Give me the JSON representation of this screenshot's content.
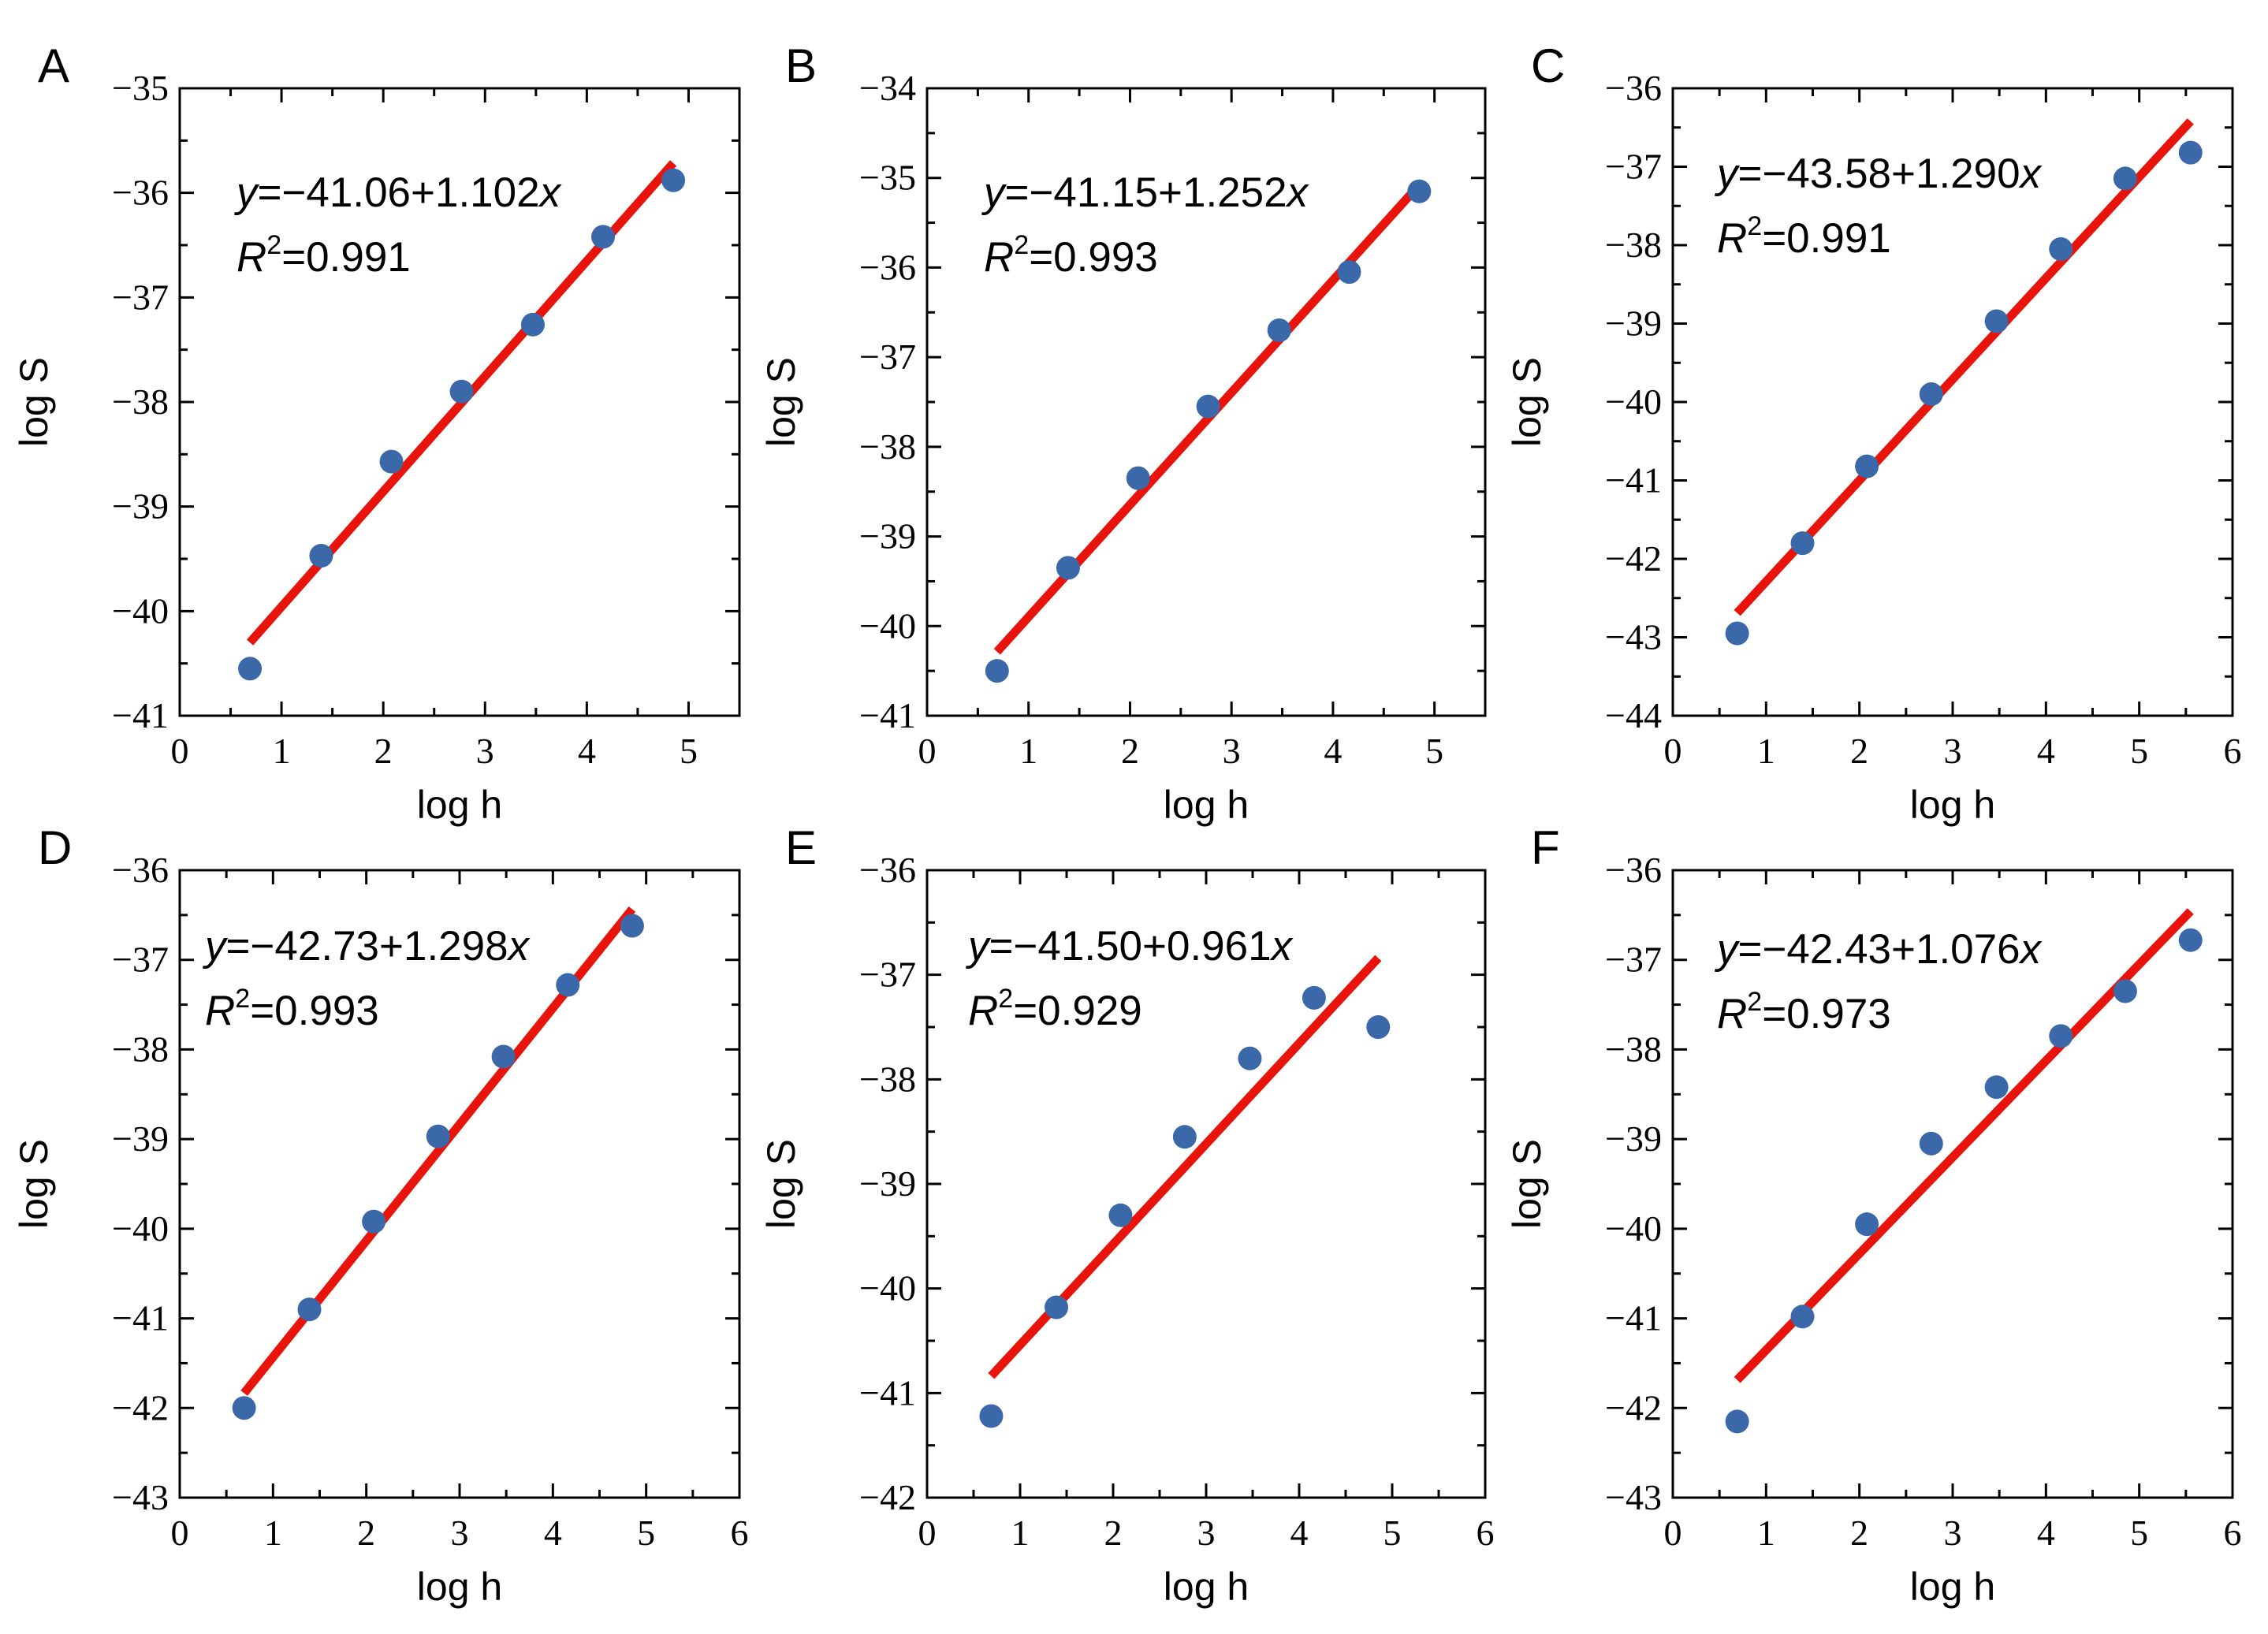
{
  "colors": {
    "fit_line": "#e8140c",
    "points": "#3b68a8",
    "axes": "#000000"
  },
  "chart_data": [
    {
      "type": "scatter",
      "panel": "A",
      "xlabel": "log h",
      "ylabel": "log S",
      "xlim": [
        0,
        5.5
      ],
      "ylim": [
        -41,
        -35
      ],
      "xticks": [
        0,
        1,
        2,
        3,
        4,
        5
      ],
      "xtick_labels": [
        "0",
        "1",
        "2",
        "3",
        "4",
        "5"
      ],
      "yticks": [
        -41,
        -40,
        -39,
        -38,
        -37,
        -36,
        -35
      ],
      "ytick_labels": [
        "−41",
        "−40",
        "−39",
        "−38",
        "−37",
        "−36",
        "−35"
      ],
      "x": [
        0.69,
        1.39,
        2.08,
        2.77,
        3.47,
        4.16,
        4.85
      ],
      "y": [
        -40.55,
        -39.47,
        -38.57,
        -37.9,
        -37.26,
        -36.42,
        -35.88
      ],
      "fit": {
        "intercept": -41.06,
        "slope": 1.102,
        "x_range": [
          0.69,
          4.85
        ]
      },
      "equation": {
        "y": "y",
        "rhs": "=−41.06+1.102",
        "x": "x"
      },
      "r2": {
        "R": "R",
        "sup": "2",
        "value": "=0.991"
      }
    },
    {
      "type": "scatter",
      "panel": "B",
      "xlabel": "log h",
      "ylabel": "log S",
      "xlim": [
        0,
        5.5
      ],
      "ylim": [
        -41,
        -34
      ],
      "xticks": [
        0,
        1,
        2,
        3,
        4,
        5
      ],
      "xtick_labels": [
        "0",
        "1",
        "2",
        "3",
        "4",
        "5"
      ],
      "yticks": [
        -41,
        -40,
        -39,
        -38,
        -37,
        -36,
        -35,
        -34
      ],
      "ytick_labels": [
        "−41",
        "−40",
        "−39",
        "−38",
        "−37",
        "−36",
        "−35",
        "−34"
      ],
      "x": [
        0.69,
        1.39,
        2.08,
        2.77,
        3.47,
        4.16,
        4.85
      ],
      "y": [
        -40.5,
        -39.35,
        -38.35,
        -37.55,
        -36.7,
        -36.05,
        -35.15
      ],
      "fit": {
        "intercept": -41.15,
        "slope": 1.252,
        "x_range": [
          0.69,
          4.85
        ]
      },
      "equation": {
        "y": "y",
        "rhs": "=−41.15+1.252",
        "x": "x"
      },
      "r2": {
        "R": "R",
        "sup": "2",
        "value": "=0.993"
      }
    },
    {
      "type": "scatter",
      "panel": "C",
      "xlabel": "log h",
      "ylabel": "log S",
      "xlim": [
        0,
        6
      ],
      "ylim": [
        -44,
        -36
      ],
      "xticks": [
        0,
        1,
        2,
        3,
        4,
        5,
        6
      ],
      "xtick_labels": [
        "0",
        "1",
        "2",
        "3",
        "4",
        "5",
        "6"
      ],
      "yticks": [
        -44,
        -43,
        -42,
        -41,
        -40,
        -39,
        -38,
        -37,
        -36
      ],
      "ytick_labels": [
        "−44",
        "−43",
        "−42",
        "−41",
        "−40",
        "−39",
        "−38",
        "−37",
        "−36"
      ],
      "x": [
        0.69,
        1.39,
        2.08,
        2.77,
        3.47,
        4.16,
        4.85,
        5.55
      ],
      "y": [
        -42.95,
        -41.8,
        -40.82,
        -39.9,
        -38.97,
        -38.05,
        -37.15,
        -36.82
      ],
      "fit": {
        "intercept": -43.58,
        "slope": 1.29,
        "x_range": [
          0.69,
          5.55
        ]
      },
      "equation": {
        "y": "y",
        "rhs": "=−43.58+1.290",
        "x": "x"
      },
      "r2": {
        "R": "R",
        "sup": "2",
        "value": "=0.991"
      }
    },
    {
      "type": "scatter",
      "panel": "D",
      "xlabel": "log h",
      "ylabel": "log S",
      "xlim": [
        0,
        6
      ],
      "ylim": [
        -43,
        -36
      ],
      "xticks": [
        0,
        1,
        2,
        3,
        4,
        5,
        6
      ],
      "xtick_labels": [
        "0",
        "1",
        "2",
        "3",
        "4",
        "5",
        "6"
      ],
      "yticks": [
        -43,
        -42,
        -41,
        -40,
        -39,
        -38,
        -37,
        -36
      ],
      "ytick_labels": [
        "−43",
        "−42",
        "−41",
        "−40",
        "−39",
        "−38",
        "−37",
        "−36"
      ],
      "x": [
        0.69,
        1.39,
        2.08,
        2.77,
        3.47,
        4.16,
        4.85
      ],
      "y": [
        -42.0,
        -40.9,
        -39.92,
        -38.97,
        -38.08,
        -37.28,
        -36.62
      ],
      "fit": {
        "intercept": -42.73,
        "slope": 1.298,
        "x_range": [
          0.69,
          4.85
        ]
      },
      "equation": {
        "y": "y",
        "rhs": "=−42.73+1.298",
        "x": "x"
      },
      "r2": {
        "R": "R",
        "sup": "2",
        "value": "=0.993"
      }
    },
    {
      "type": "scatter",
      "panel": "E",
      "xlabel": "log h",
      "ylabel": "log S",
      "xlim": [
        0,
        6
      ],
      "ylim": [
        -42,
        -36
      ],
      "xticks": [
        0,
        1,
        2,
        3,
        4,
        5,
        6
      ],
      "xtick_labels": [
        "0",
        "1",
        "2",
        "3",
        "4",
        "5",
        "6"
      ],
      "yticks": [
        -42,
        -41,
        -40,
        -39,
        -38,
        -37,
        -36
      ],
      "ytick_labels": [
        "−42",
        "−41",
        "−40",
        "−39",
        "−38",
        "−37",
        "−36"
      ],
      "x": [
        0.69,
        1.39,
        2.08,
        2.77,
        3.47,
        4.16,
        4.85
      ],
      "y": [
        -41.22,
        -40.18,
        -39.3,
        -38.55,
        -37.8,
        -37.22,
        -37.5
      ],
      "fit": {
        "intercept": -41.5,
        "slope": 0.961,
        "x_range": [
          0.69,
          4.85
        ]
      },
      "equation": {
        "y": "y",
        "rhs": "=−41.50+0.961",
        "x": "x"
      },
      "r2": {
        "R": "R",
        "sup": "2",
        "value": "=0.929"
      }
    },
    {
      "type": "scatter",
      "panel": "F",
      "xlabel": "log h",
      "ylabel": "log S",
      "xlim": [
        0,
        6
      ],
      "ylim": [
        -43,
        -36
      ],
      "xticks": [
        0,
        1,
        2,
        3,
        4,
        5,
        6
      ],
      "xtick_labels": [
        "0",
        "1",
        "2",
        "3",
        "4",
        "5",
        "6"
      ],
      "yticks": [
        -43,
        -42,
        -41,
        -40,
        -39,
        -38,
        -37,
        -36
      ],
      "ytick_labels": [
        "−43",
        "−42",
        "−41",
        "−40",
        "−39",
        "−38",
        "−37",
        "−36"
      ],
      "x": [
        0.69,
        1.39,
        2.08,
        2.77,
        3.47,
        4.16,
        4.85,
        5.55
      ],
      "y": [
        -42.15,
        -40.98,
        -39.95,
        -39.05,
        -38.42,
        -37.85,
        -37.35,
        -36.78
      ],
      "fit": {
        "intercept": -42.43,
        "slope": 1.076,
        "x_range": [
          0.69,
          5.55
        ]
      },
      "equation": {
        "y": "y",
        "rhs": "=−42.43+1.076",
        "x": "x"
      },
      "r2": {
        "R": "R",
        "sup": "2",
        "value": "=0.973"
      }
    }
  ]
}
